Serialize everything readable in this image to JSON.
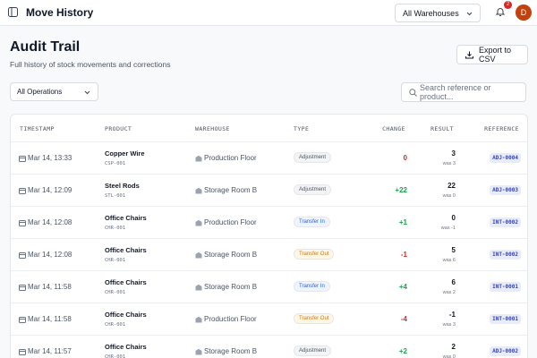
{
  "header": {
    "title": "Move History",
    "warehouse_select": "All Warehouses",
    "notification_count": "2",
    "avatar": "D"
  },
  "page": {
    "title": "Audit Trail",
    "subtitle": "Full history of stock movements and corrections",
    "export_button": "Export to CSV",
    "operation_filter": "All Operations",
    "search_placeholder": "Search reference or product..."
  },
  "table": {
    "columns": [
      "TIMESTAMP",
      "PRODUCT",
      "WAREHOUSE",
      "TYPE",
      "CHANGE",
      "RESULT",
      "REFERENCE"
    ],
    "rows": [
      {
        "timestamp": "Mar 14, 13:33",
        "product": "Copper Wire",
        "sku": "CSP-001",
        "warehouse": "Production Floor",
        "type": {
          "label": "Adjustment",
          "color": "#4b5563",
          "bg": "#f3f4f6"
        },
        "change": "0",
        "change_color": "#dc2626",
        "result": "3",
        "previous": "was 3",
        "reference": "ADJ-0004"
      },
      {
        "timestamp": "Mar 14, 12:09",
        "product": "Steel Rods",
        "sku": "STL-001",
        "warehouse": "Storage Room B",
        "type": {
          "label": "Adjustment",
          "color": "#4b5563",
          "bg": "#f3f4f6"
        },
        "change": "+22",
        "change_color": "#16a34a",
        "result": "22",
        "previous": "was 0",
        "reference": "ADJ-0003"
      },
      {
        "timestamp": "Mar 14, 12:08",
        "product": "Office Chairs",
        "sku": "CHR-001",
        "warehouse": "Production Floor",
        "type": {
          "label": "Transfer In",
          "color": "#2563eb",
          "bg": "#eff4ff"
        },
        "change": "+1",
        "change_color": "#16a34a",
        "result": "0",
        "previous": "was -1",
        "reference": "INT-0002"
      },
      {
        "timestamp": "Mar 14, 12:08",
        "product": "Office Chairs",
        "sku": "CHR-001",
        "warehouse": "Storage Room B",
        "type": {
          "label": "Transfer Out",
          "color": "#d97706",
          "bg": "#fff7e6"
        },
        "change": "-1",
        "change_color": "#dc2626",
        "result": "5",
        "previous": "was 6",
        "reference": "INT-0002"
      },
      {
        "timestamp": "Mar 14, 11:58",
        "product": "Office Chairs",
        "sku": "CHR-001",
        "warehouse": "Storage Room B",
        "type": {
          "label": "Transfer In",
          "color": "#2563eb",
          "bg": "#eff4ff"
        },
        "change": "+4",
        "change_color": "#16a34a",
        "result": "6",
        "previous": "was 2",
        "reference": "INT-0001"
      },
      {
        "timestamp": "Mar 14, 11:58",
        "product": "Office Chairs",
        "sku": "CHR-001",
        "warehouse": "Production Floor",
        "type": {
          "label": "Transfer Out",
          "color": "#d97706",
          "bg": "#fff7e6"
        },
        "change": "-4",
        "change_color": "#dc2626",
        "result": "-1",
        "previous": "was 3",
        "reference": "INT-0001"
      },
      {
        "timestamp": "Mar 14, 11:57",
        "product": "Office Chairs",
        "sku": "CHR-001",
        "warehouse": "Storage Room B",
        "type": {
          "label": "Adjustment",
          "color": "#4b5563",
          "bg": "#f3f4f6"
        },
        "change": "+2",
        "change_color": "#16a34a",
        "result": "2",
        "previous": "was 0",
        "reference": "ADJ-0002"
      }
    ]
  }
}
